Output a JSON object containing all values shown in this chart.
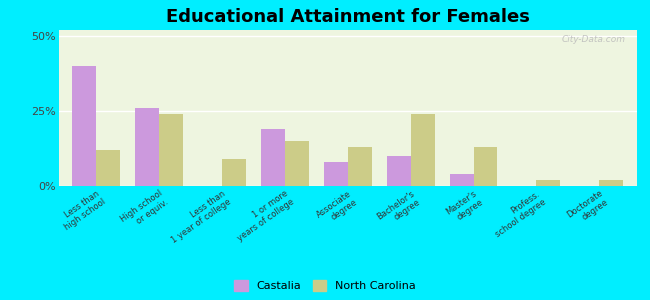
{
  "title": "Educational Attainment for Females",
  "categories": [
    "Less than\nhigh school",
    "High school\nor equiv.",
    "Less than\n1 year of college",
    "1 or more\nyears of college",
    "Associate\ndegree",
    "Bachelor's\ndegree",
    "Master's\ndegree",
    "Profess.\nschool degree",
    "Doctorate\ndegree"
  ],
  "castalia": [
    40.0,
    26.0,
    0.0,
    19.0,
    8.0,
    10.0,
    4.0,
    0.0,
    0.0
  ],
  "north_carolina": [
    12.0,
    24.0,
    9.0,
    15.0,
    13.0,
    24.0,
    13.0,
    2.0,
    2.0
  ],
  "castalia_color": "#cc99dd",
  "nc_color": "#cccc88",
  "background_outer": "#00eeff",
  "background_inner": "#eef5e0",
  "yticks": [
    0,
    25,
    50
  ],
  "ylim": [
    0,
    52
  ],
  "title_fontsize": 13,
  "legend_labels": [
    "Castalia",
    "North Carolina"
  ],
  "bar_width": 0.38
}
